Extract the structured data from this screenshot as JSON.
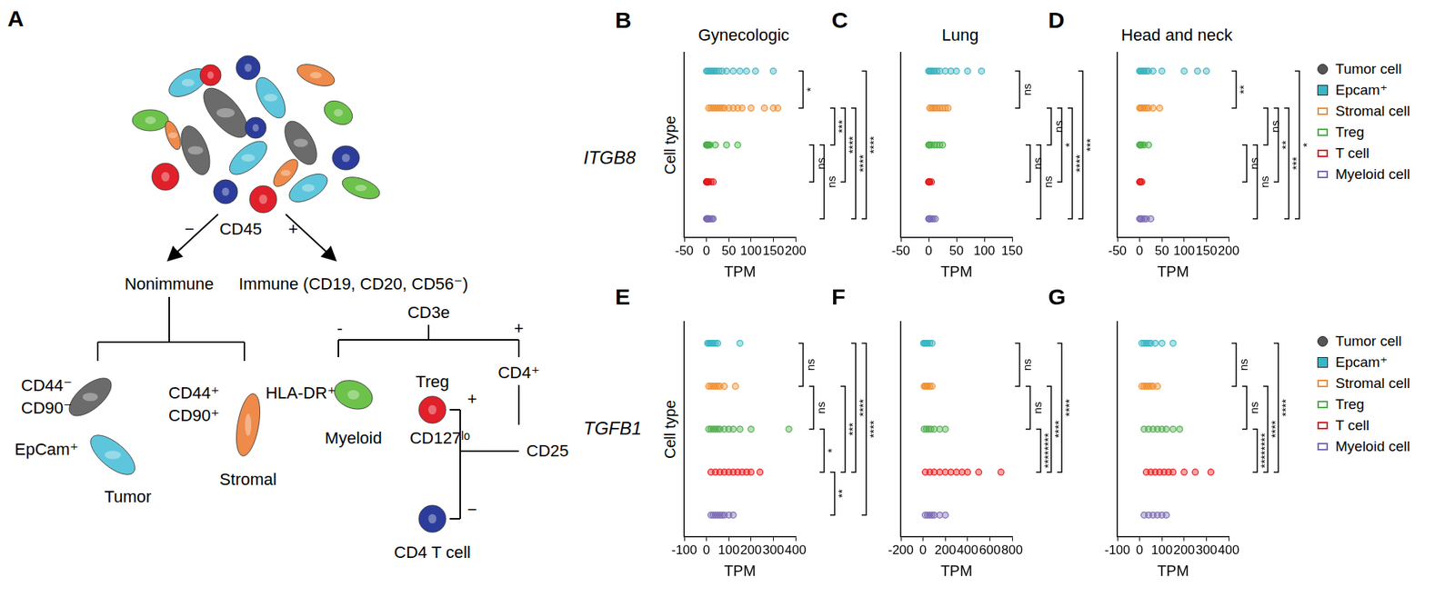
{
  "diagram": {
    "letter": "A",
    "labels": {
      "cd45_minus": "−",
      "cd45": "CD45",
      "cd45_plus": "+",
      "nonimmune": "Nonimmune",
      "immune": "Immune (CD19, CD20, CD56⁻)",
      "cd44neg": "CD44⁻",
      "cd90neg": "CD90⁻",
      "epcam": "EpCam⁺",
      "tumor": "Tumor",
      "cd44pos": "CD44⁺",
      "cd90pos": "CD90⁺",
      "stromal": "Stromal",
      "cd3e": "CD3e",
      "cd3e_minus": "-",
      "cd3e_plus": "+",
      "hladr": "HLA-DR⁺",
      "myeloid": "Myeloid",
      "treg": "Treg",
      "cd127": "CD127ˡᵒ",
      "cd4": "CD4⁺",
      "cd25": "CD25",
      "cd25_plus": "+",
      "cd25_minus": "−",
      "cd4t": "CD4 T cell"
    }
  },
  "row_labels": [
    "ITGB8",
    "TGFB1"
  ],
  "key": [
    {
      "name": "Tumor cell",
      "color": "#555555",
      "marker": "circle"
    },
    {
      "name": "Epcam⁺",
      "color": "#3cb4c4",
      "marker": "square"
    },
    {
      "name": "Stromal cell",
      "color": "#f28e2b",
      "marker": "open_square"
    },
    {
      "name": "Treg",
      "color": "#4daf4a",
      "marker": "open_square"
    },
    {
      "name": "T cell",
      "color": "#e31a1c",
      "marker": "open_square"
    },
    {
      "name": "Myeloid cell",
      "color": "#7b68b5",
      "marker": "open_square"
    }
  ],
  "chart_data": [
    {
      "type": "strip",
      "letter": "B",
      "title": "Gynecologic",
      "x_label": "TPM",
      "y_label": "Cell type",
      "xlim": [
        -50,
        200
      ],
      "xticks": [
        -50,
        0,
        50,
        100,
        150,
        200
      ],
      "grid": false,
      "tick_labels": "x",
      "series": [
        {
          "name": "Epcam⁺",
          "color": "#3cb4c4",
          "marker": "circle",
          "values": [
            0,
            2,
            5,
            8,
            10,
            12,
            15,
            18,
            22,
            28,
            35,
            45,
            60,
            75,
            90,
            110,
            150
          ]
        },
        {
          "name": "Stromal cell",
          "color": "#f28e2b",
          "marker": "circle",
          "values": [
            5,
            10,
            15,
            20,
            25,
            30,
            35,
            40,
            50,
            60,
            70,
            80,
            100,
            130,
            150,
            160
          ]
        },
        {
          "name": "Treg",
          "color": "#4daf4a",
          "marker": "circle",
          "values": [
            0,
            0,
            1,
            2,
            3,
            5,
            8,
            20,
            45,
            70
          ]
        },
        {
          "name": "T cell",
          "color": "#e31a1c",
          "marker": "circle",
          "values": [
            0,
            0,
            1,
            2,
            3,
            5,
            10,
            15
          ]
        },
        {
          "name": "Myeloid cell",
          "color": "#7b68b5",
          "marker": "circle",
          "values": [
            0,
            1,
            2,
            3,
            5,
            8,
            12,
            15
          ]
        }
      ],
      "comparisons": [
        {
          "rows": [
            0,
            1
          ],
          "label": "*"
        },
        {
          "rows": [
            2,
            3
          ],
          "label": "ns"
        },
        {
          "rows": [
            2,
            4
          ],
          "label": "ns"
        },
        {
          "rows": [
            1,
            2
          ],
          "label": "***"
        },
        {
          "rows": [
            1,
            3
          ],
          "label": "****"
        },
        {
          "rows": [
            1,
            4
          ],
          "label": "****"
        },
        {
          "rows": [
            0,
            4
          ],
          "label": "****"
        }
      ]
    },
    {
      "type": "strip",
      "letter": "C",
      "title": "Lung",
      "x_label": "TPM",
      "xlim": [
        -50,
        150
      ],
      "xticks": [
        -50,
        0,
        50,
        100,
        150
      ],
      "grid": false,
      "tick_labels": "x",
      "series": [
        {
          "name": "Epcam⁺",
          "color": "#3cb4c4",
          "marker": "circle",
          "values": [
            0,
            1,
            3,
            5,
            8,
            10,
            15,
            20,
            30,
            40,
            50,
            70,
            95
          ]
        },
        {
          "name": "Stromal cell",
          "color": "#f28e2b",
          "marker": "circle",
          "values": [
            2,
            5,
            8,
            12,
            15,
            20,
            25,
            30,
            35
          ]
        },
        {
          "name": "Treg",
          "color": "#4daf4a",
          "marker": "circle",
          "values": [
            0,
            1,
            2,
            5,
            10,
            15,
            20,
            25
          ]
        },
        {
          "name": "T cell",
          "color": "#e31a1c",
          "marker": "circle",
          "values": [
            0,
            0,
            1,
            2,
            5
          ]
        },
        {
          "name": "Myeloid cell",
          "color": "#7b68b5",
          "marker": "circle",
          "values": [
            0,
            1,
            2,
            5,
            8,
            12
          ]
        }
      ],
      "comparisons": [
        {
          "rows": [
            0,
            1
          ],
          "label": "ns"
        },
        {
          "rows": [
            2,
            3
          ],
          "label": "ns"
        },
        {
          "rows": [
            2,
            4
          ],
          "label": "ns"
        },
        {
          "rows": [
            1,
            2
          ],
          "label": "ns"
        },
        {
          "rows": [
            1,
            3
          ],
          "label": "*"
        },
        {
          "rows": [
            1,
            4
          ],
          "label": "****"
        },
        {
          "rows": [
            0,
            4
          ],
          "label": "***"
        }
      ]
    },
    {
      "type": "strip",
      "letter": "D",
      "title": "Head and neck",
      "x_label": "TPM",
      "xlim": [
        -50,
        200
      ],
      "xticks": [
        -50,
        0,
        50,
        100,
        150,
        200
      ],
      "grid": false,
      "tick_labels": "x",
      "series": [
        {
          "name": "Epcam⁺",
          "color": "#3cb4c4",
          "marker": "circle",
          "values": [
            0,
            1,
            2,
            5,
            8,
            10,
            15,
            20,
            30,
            50,
            100,
            130,
            150
          ]
        },
        {
          "name": "Stromal cell",
          "color": "#f28e2b",
          "marker": "circle",
          "values": [
            0,
            2,
            5,
            10,
            15,
            20,
            30,
            45
          ]
        },
        {
          "name": "Treg",
          "color": "#4daf4a",
          "marker": "circle",
          "values": [
            0,
            1,
            2,
            5,
            10,
            20
          ]
        },
        {
          "name": "T cell",
          "color": "#e31a1c",
          "marker": "circle",
          "values": [
            0,
            1,
            2,
            5
          ]
        },
        {
          "name": "Myeloid cell",
          "color": "#7b68b5",
          "marker": "circle",
          "values": [
            0,
            2,
            5,
            10,
            15,
            25
          ]
        }
      ],
      "comparisons": [
        {
          "rows": [
            0,
            1
          ],
          "label": "**"
        },
        {
          "rows": [
            2,
            3
          ],
          "label": "ns"
        },
        {
          "rows": [
            2,
            4
          ],
          "label": "ns"
        },
        {
          "rows": [
            1,
            2
          ],
          "label": "ns"
        },
        {
          "rows": [
            1,
            3
          ],
          "label": "**"
        },
        {
          "rows": [
            1,
            4
          ],
          "label": "***"
        },
        {
          "rows": [
            0,
            4
          ],
          "label": "*"
        }
      ]
    },
    {
      "type": "strip",
      "letter": "E",
      "x_label": "TPM",
      "y_label": "Cell type",
      "xlim": [
        -100,
        400
      ],
      "xticks": [
        -100,
        0,
        100,
        200,
        300,
        400
      ],
      "grid": false,
      "tick_labels": "x",
      "series": [
        {
          "name": "Epcam⁺",
          "color": "#3cb4c4",
          "marker": "circle",
          "values": [
            5,
            10,
            15,
            20,
            25,
            30,
            40,
            50,
            150
          ]
        },
        {
          "name": "Stromal cell",
          "color": "#f28e2b",
          "marker": "circle",
          "values": [
            10,
            20,
            30,
            40,
            50,
            60,
            80,
            130
          ]
        },
        {
          "name": "Treg",
          "color": "#4daf4a",
          "marker": "circle",
          "values": [
            10,
            20,
            30,
            40,
            50,
            60,
            80,
            100,
            120,
            150,
            200,
            370
          ]
        },
        {
          "name": "T cell",
          "color": "#e31a1c",
          "marker": "circle",
          "values": [
            20,
            40,
            60,
            80,
            100,
            120,
            140,
            160,
            180,
            200,
            240
          ]
        },
        {
          "name": "Myeloid cell",
          "color": "#7b68b5",
          "marker": "circle",
          "values": [
            20,
            30,
            40,
            50,
            60,
            70,
            80,
            100,
            120
          ]
        }
      ],
      "comparisons": [
        {
          "rows": [
            0,
            1
          ],
          "label": "ns"
        },
        {
          "rows": [
            1,
            2
          ],
          "label": "ns"
        },
        {
          "rows": [
            2,
            3
          ],
          "label": "*"
        },
        {
          "rows": [
            3,
            4
          ],
          "label": "**"
        },
        {
          "rows": [
            1,
            3
          ],
          "label": "***"
        },
        {
          "rows": [
            0,
            3
          ],
          "label": "****"
        },
        {
          "rows": [
            0,
            4
          ],
          "label": "****"
        }
      ]
    },
    {
      "type": "strip",
      "letter": "F",
      "x_label": "TPM",
      "xlim": [
        -200,
        800
      ],
      "xticks": [
        -200,
        0,
        200,
        400,
        600,
        800
      ],
      "grid": false,
      "tick_labels": "x",
      "series": [
        {
          "name": "Epcam⁺",
          "color": "#3cb4c4",
          "marker": "circle",
          "values": [
            5,
            10,
            20,
            30,
            40,
            60,
            80
          ]
        },
        {
          "name": "Stromal cell",
          "color": "#f28e2b",
          "marker": "circle",
          "values": [
            10,
            20,
            30,
            40,
            60,
            80
          ]
        },
        {
          "name": "Treg",
          "color": "#4daf4a",
          "marker": "circle",
          "values": [
            10,
            30,
            50,
            70,
            100,
            150,
            200
          ]
        },
        {
          "name": "T cell",
          "color": "#e31a1c",
          "marker": "circle",
          "values": [
            20,
            60,
            100,
            150,
            200,
            250,
            300,
            350,
            400,
            500,
            700
          ]
        },
        {
          "name": "Myeloid cell",
          "color": "#7b68b5",
          "marker": "circle",
          "values": [
            20,
            40,
            60,
            80,
            100,
            150,
            200
          ]
        }
      ],
      "comparisons": [
        {
          "rows": [
            0,
            1
          ],
          "label": "ns"
        },
        {
          "rows": [
            1,
            2
          ],
          "label": "ns"
        },
        {
          "rows": [
            2,
            3
          ],
          "label": "********"
        },
        {
          "rows": [
            1,
            3
          ],
          "label": "****"
        },
        {
          "rows": [
            0,
            3
          ],
          "label": "****"
        }
      ]
    },
    {
      "type": "strip",
      "letter": "G",
      "x_label": "TPM",
      "xlim": [
        -100,
        400
      ],
      "xticks": [
        -100,
        0,
        100,
        200,
        300,
        400
      ],
      "grid": false,
      "tick_labels": "x",
      "series": [
        {
          "name": "Epcam⁺",
          "color": "#3cb4c4",
          "marker": "circle",
          "values": [
            10,
            20,
            30,
            40,
            50,
            70,
            100,
            150
          ]
        },
        {
          "name": "Stromal cell",
          "color": "#f28e2b",
          "marker": "circle",
          "values": [
            10,
            20,
            30,
            40,
            50,
            60,
            80
          ]
        },
        {
          "name": "Treg",
          "color": "#4daf4a",
          "marker": "circle",
          "values": [
            20,
            40,
            60,
            80,
            100,
            120,
            150,
            180
          ]
        },
        {
          "name": "T cell",
          "color": "#e31a1c",
          "marker": "circle",
          "values": [
            30,
            50,
            70,
            90,
            110,
            130,
            150,
            200,
            250,
            320
          ]
        },
        {
          "name": "Myeloid cell",
          "color": "#7b68b5",
          "marker": "circle",
          "values": [
            20,
            40,
            60,
            80,
            100,
            120
          ]
        }
      ],
      "comparisons": [
        {
          "rows": [
            0,
            1
          ],
          "label": "ns"
        },
        {
          "rows": [
            1,
            2
          ],
          "label": "ns"
        },
        {
          "rows": [
            2,
            3
          ],
          "label": "********"
        },
        {
          "rows": [
            1,
            3
          ],
          "label": "****"
        },
        {
          "rows": [
            0,
            3
          ],
          "label": "****"
        }
      ]
    }
  ]
}
